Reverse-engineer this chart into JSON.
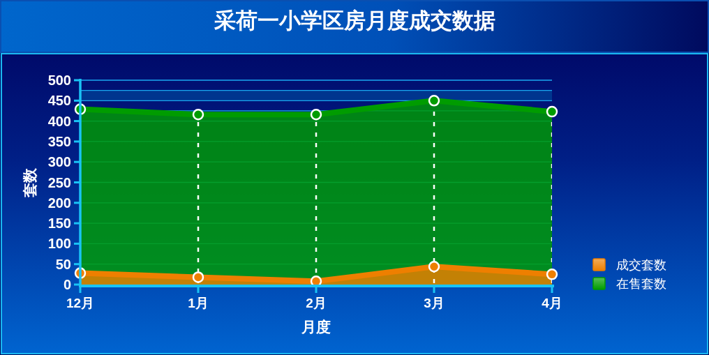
{
  "chart_data": {
    "type": "area",
    "title": "采荷一小学区房月度成交数据",
    "xlabel": "月度",
    "ylabel": "套数",
    "categories": [
      "12月",
      "1月",
      "2月",
      "3月",
      "4月"
    ],
    "series": [
      {
        "name": "成交套数",
        "color": "#ee7f00",
        "values": [
          28,
          18,
          8,
          44,
          25
        ]
      },
      {
        "name": "在售套数",
        "color": "#009c00",
        "values": [
          429,
          416,
          416,
          450,
          423
        ]
      }
    ],
    "ylim": [
      0,
      500
    ],
    "yticks": [
      0,
      50,
      100,
      150,
      200,
      250,
      300,
      350,
      400,
      {
        "value": 425,
        "label": null
      },
      450,
      {
        "value": 475,
        "label": null
      },
      500
    ],
    "bands": [
      {
        "axis": "y",
        "from": 450,
        "to": 475,
        "color": "#00358e"
      }
    ],
    "grid": true,
    "legend": "right",
    "marker": "circle",
    "line_style": "solid"
  }
}
